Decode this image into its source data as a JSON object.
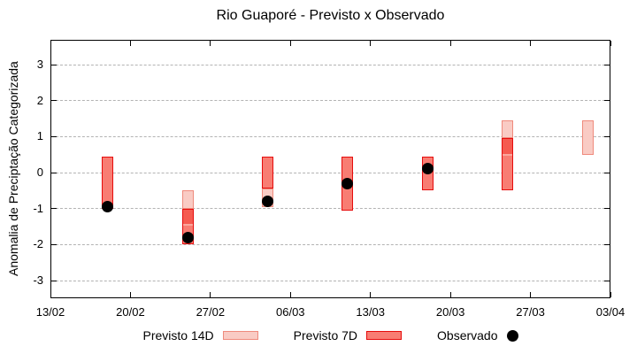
{
  "colors": {
    "bands": {
      "14d": {
        "fill": "#f9cbc4",
        "border": "#ef8a7c"
      },
      "7d": {
        "fill": "#f87d73",
        "border": "#e60c0c"
      },
      "7d_dark": {
        "fill": "#f55b51",
        "border": "#e60c0c"
      }
    },
    "median_line": "#fba79d",
    "observed_dot": "#000000",
    "grid": "#b3b3b3"
  },
  "chart_data": {
    "type": "candlestick",
    "title": "Rio Guaporé - Previsto x Observado",
    "xlabel": "",
    "ylabel": "Anomalia de Preciptação Categorizada",
    "ylim": [
      -3.49,
      3.69
    ],
    "y_ticks": [
      3,
      2,
      1,
      0,
      -1,
      -2,
      -3
    ],
    "grid": "horizontal-dashed",
    "legend_position": "bottom",
    "x_total_days": 49,
    "x_ticks": [
      {
        "label": "13/02",
        "day": 0
      },
      {
        "label": "20/02",
        "day": 7
      },
      {
        "label": "27/02",
        "day": 14
      },
      {
        "label": "06/03",
        "day": 21
      },
      {
        "label": "13/03",
        "day": 28
      },
      {
        "label": "20/03",
        "day": 35
      },
      {
        "label": "27/03",
        "day": 42
      },
      {
        "label": "03/04",
        "day": 49
      }
    ],
    "series": [
      {
        "name": "Previsto 14D",
        "style": "box",
        "band": "14d"
      },
      {
        "name": "Previsto 7D",
        "style": "box",
        "band": "7d"
      },
      {
        "name": "Observado",
        "style": "point",
        "band": "observed"
      }
    ],
    "bars": [
      {
        "date": "18/02",
        "day": 5,
        "segments": [
          {
            "band": "7d",
            "from": 0.45,
            "to": -1.0
          }
        ],
        "observed": -0.95
      },
      {
        "date": "25/02",
        "day": 12,
        "segments": [
          {
            "band": "14d",
            "from": -0.5,
            "to": -1.0
          },
          {
            "band": "7d_dark",
            "from": -1.0,
            "to": -1.45
          },
          {
            "band": "7d",
            "from": -1.45,
            "to": -2.0
          }
        ],
        "median": -1.45,
        "observed": -1.8
      },
      {
        "date": "04/03",
        "day": 19,
        "segments": [
          {
            "band": "7d",
            "from": 0.45,
            "to": -0.45
          },
          {
            "band": "14d",
            "from": -0.45,
            "to": -0.95
          }
        ],
        "observed": -0.8
      },
      {
        "date": "11/03",
        "day": 26,
        "segments": [
          {
            "band": "7d",
            "from": 0.45,
            "to": -1.05
          }
        ],
        "observed": -0.3
      },
      {
        "date": "18/03",
        "day": 33,
        "segments": [
          {
            "band": "7d",
            "from": 0.45,
            "to": -0.5
          }
        ],
        "observed": 0.12
      },
      {
        "date": "25/03",
        "day": 40,
        "segments": [
          {
            "band": "14d",
            "from": 1.45,
            "to": 0.95
          },
          {
            "band": "7d_dark",
            "from": 0.95,
            "to": 0.5
          },
          {
            "band": "7d",
            "from": 0.5,
            "to": -0.5
          }
        ],
        "median": 0.5,
        "observed": null
      },
      {
        "date": "01/04",
        "day": 47,
        "segments": [
          {
            "band": "14d",
            "from": 1.45,
            "to": 0.5
          }
        ],
        "observed": null
      }
    ]
  }
}
